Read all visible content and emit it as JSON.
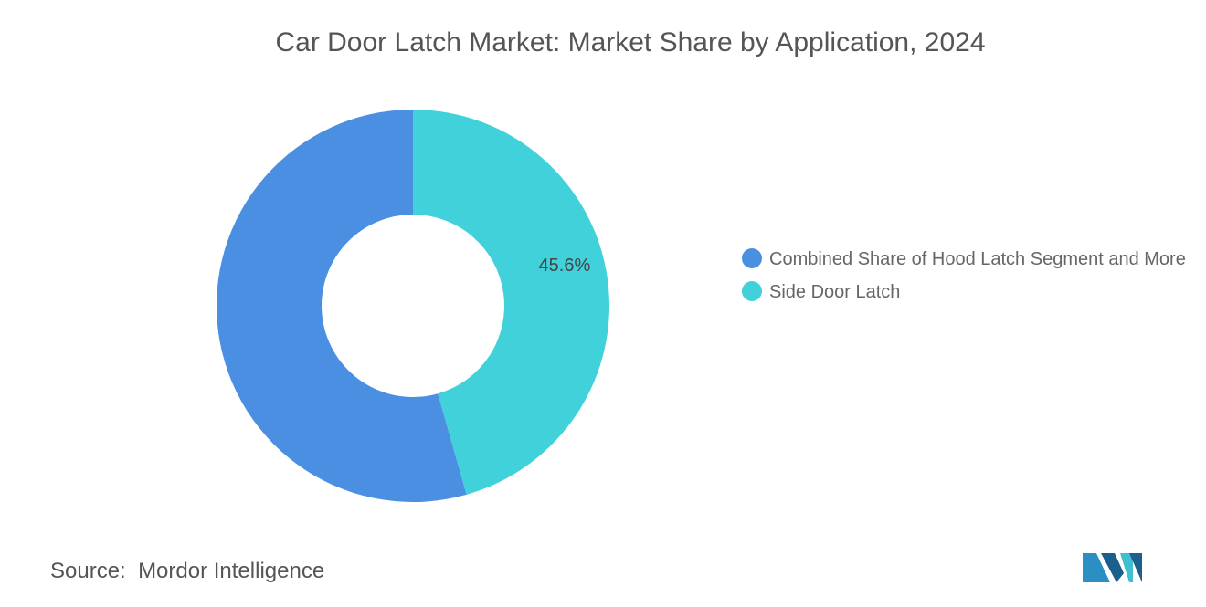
{
  "chart_data": {
    "type": "donut",
    "title": "Car Door Latch Market: Market Share by Application, 2024",
    "categories": [
      "Combined Share of Hood Latch Segment and More",
      "Side Door Latch"
    ],
    "values": [
      54.4,
      45.6
    ],
    "value_labels": [
      null,
      "45.6%"
    ],
    "colors": [
      "#4a8fe2",
      "#40d1da"
    ]
  },
  "source": {
    "label": "Source:",
    "text": "Mordor Intelligence"
  }
}
